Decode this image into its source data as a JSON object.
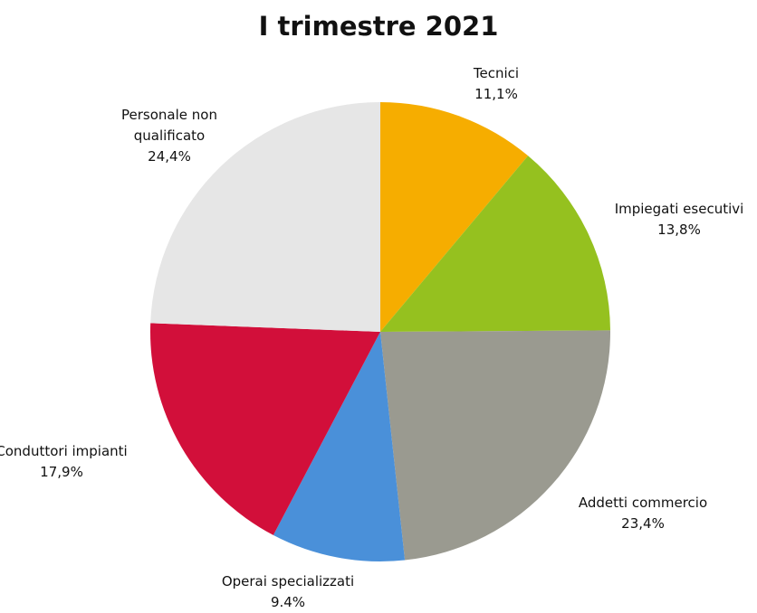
{
  "chart_data": {
    "type": "pie",
    "title": "I trimestre 2021",
    "categories": [
      "Tecnici",
      "Impiegati esecutivi",
      "Addetti commercio",
      "Operai specializzati",
      "Conduttori impianti",
      "Personale non qualificato"
    ],
    "values": [
      11.1,
      13.8,
      23.4,
      9.4,
      17.9,
      24.4
    ],
    "value_labels": [
      "11,1%",
      "13,8%",
      "23,4%",
      "9.4%",
      "17,9%",
      "24,4%"
    ],
    "colors": [
      "#f6ad00",
      "#95c11f",
      "#9a9a90",
      "#4a90d9",
      "#d20f3a",
      "#e6e6e6"
    ]
  }
}
